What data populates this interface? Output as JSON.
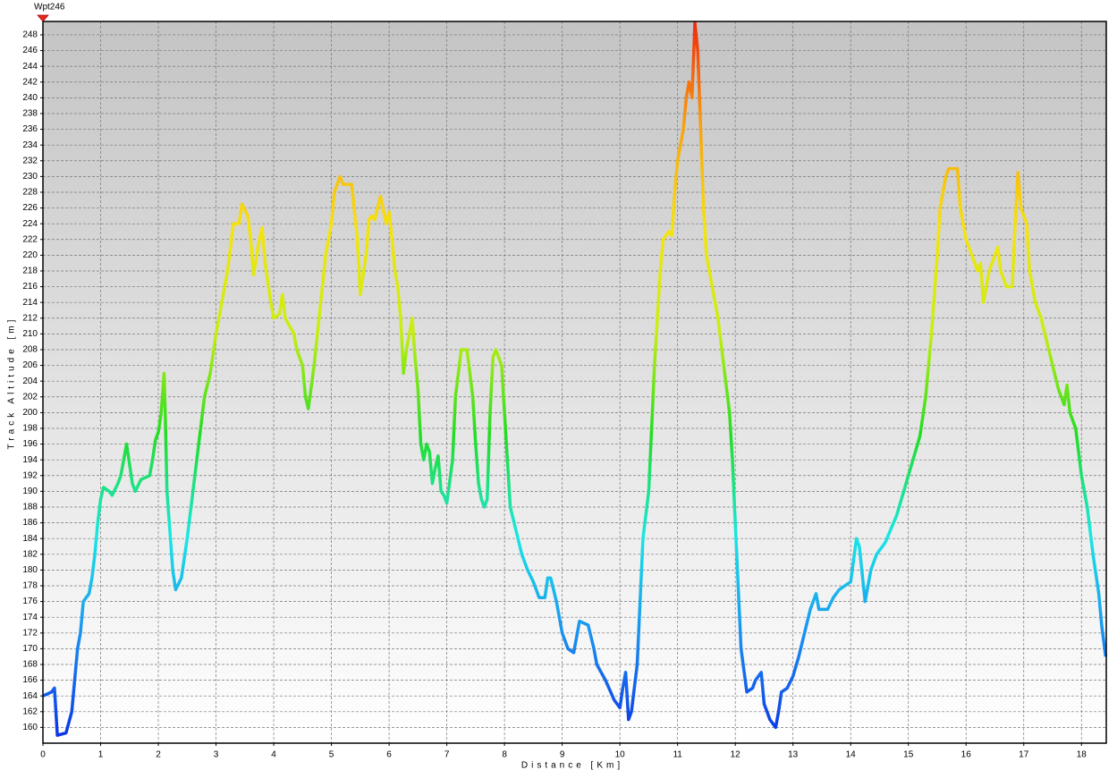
{
  "chart_data": {
    "type": "line",
    "xlabel": "Distance [Km]",
    "ylabel": "Track Altitude [m]",
    "annotations": [
      {
        "text": "Wpt246",
        "x": 0
      }
    ],
    "grid": true,
    "colorscale": [
      "#0a2ee6",
      "#1a8cf0",
      "#19e6e6",
      "#22dd22",
      "#c8ee10",
      "#f5e30e",
      "#f8a012",
      "#f02a0a"
    ],
    "xlim": [
      0,
      18.43
    ],
    "ylim": [
      158,
      249.7
    ],
    "xticks": [
      0,
      1,
      2,
      3,
      4,
      5,
      6,
      7,
      8,
      9,
      10,
      11,
      12,
      13,
      14,
      15,
      16,
      17,
      18
    ],
    "yticks": [
      160,
      162,
      164,
      166,
      168,
      170,
      172,
      174,
      176,
      178,
      180,
      182,
      184,
      186,
      188,
      190,
      192,
      194,
      196,
      198,
      200,
      202,
      204,
      206,
      208,
      210,
      212,
      214,
      216,
      218,
      220,
      222,
      224,
      226,
      228,
      230,
      232,
      234,
      236,
      238,
      240,
      242,
      244,
      246,
      248
    ],
    "x": [
      0,
      0.15,
      0.2,
      0.25,
      0.4,
      0.5,
      0.55,
      0.6,
      0.65,
      0.7,
      0.8,
      0.85,
      0.9,
      0.95,
      1.0,
      1.05,
      1.15,
      1.2,
      1.3,
      1.35,
      1.4,
      1.45,
      1.55,
      1.6,
      1.7,
      1.85,
      1.9,
      1.95,
      2.0,
      2.05,
      2.1,
      2.12,
      2.15,
      2.25,
      2.3,
      2.4,
      2.5,
      2.6,
      2.7,
      2.8,
      2.9,
      3.0,
      3.1,
      3.2,
      3.25,
      3.3,
      3.4,
      3.45,
      3.55,
      3.6,
      3.65,
      3.75,
      3.8,
      3.85,
      3.95,
      4.0,
      4.1,
      4.15,
      4.2,
      4.35,
      4.4,
      4.5,
      4.55,
      4.6,
      4.7,
      4.8,
      4.9,
      5.0,
      5.05,
      5.15,
      5.2,
      5.35,
      5.45,
      5.5,
      5.6,
      5.65,
      5.7,
      5.75,
      5.85,
      5.95,
      6.0,
      6.05,
      6.1,
      6.15,
      6.2,
      6.25,
      6.3,
      6.35,
      6.4,
      6.45,
      6.5,
      6.55,
      6.6,
      6.65,
      6.7,
      6.75,
      6.8,
      6.85,
      6.9,
      6.95,
      7.0,
      7.1,
      7.15,
      7.25,
      7.35,
      7.45,
      7.5,
      7.55,
      7.6,
      7.65,
      7.7,
      7.75,
      7.8,
      7.85,
      7.95,
      8.0,
      8.05,
      8.1,
      8.2,
      8.3,
      8.4,
      8.5,
      8.6,
      8.7,
      8.75,
      8.8,
      8.9,
      9.0,
      9.1,
      9.2,
      9.3,
      9.45,
      9.55,
      9.6,
      9.75,
      9.9,
      10.0,
      10.05,
      10.1,
      10.15,
      10.2,
      10.3,
      10.35,
      10.4,
      10.5,
      10.55,
      10.6,
      10.65,
      10.7,
      10.75,
      10.85,
      10.9,
      10.95,
      11.0,
      11.1,
      11.15,
      11.2,
      11.25,
      11.3,
      11.35,
      11.4,
      11.45,
      11.5,
      11.6,
      11.7,
      11.8,
      11.9,
      11.95,
      12.0,
      12.05,
      12.1,
      12.2,
      12.3,
      12.35,
      12.45,
      12.5,
      12.6,
      12.7,
      12.75,
      12.8,
      12.9,
      13.0,
      13.1,
      13.2,
      13.3,
      13.4,
      13.45,
      13.6,
      13.7,
      13.8,
      13.9,
      14.0,
      14.1,
      14.15,
      14.25,
      14.35,
      14.45,
      14.6,
      14.8,
      15.0,
      15.2,
      15.3,
      15.4,
      15.5,
      15.55,
      15.65,
      15.7,
      15.85,
      15.9,
      16.0,
      16.1,
      16.2,
      16.25,
      16.3,
      16.4,
      16.5,
      16.55,
      16.6,
      16.7,
      16.8,
      16.85,
      16.9,
      16.95,
      17.05,
      17.1,
      17.2,
      17.3,
      17.4,
      17.5,
      17.6,
      17.7,
      17.75,
      17.8,
      17.9,
      18.0,
      18.1,
      18.2,
      18.3,
      18.35,
      18.42
    ],
    "values": [
      164,
      164.5,
      165,
      159,
      159.3,
      162,
      166,
      170,
      172,
      176,
      177,
      179,
      182,
      186,
      189,
      190.5,
      190,
      189.5,
      191,
      192,
      194,
      196,
      191,
      190,
      191.5,
      192,
      194,
      196.5,
      197.5,
      200,
      205,
      200,
      190,
      180,
      177.5,
      179,
      184,
      190,
      196,
      202,
      205,
      210,
      214,
      218,
      221,
      224,
      224,
      226.5,
      225,
      222,
      217.5,
      222,
      223.5,
      219,
      214,
      212,
      212.5,
      215,
      212,
      210,
      208,
      206,
      202,
      200.5,
      206,
      213,
      220,
      224,
      228,
      230,
      229,
      229,
      222,
      215,
      220,
      224.5,
      225,
      224.5,
      227.5,
      224,
      225.5,
      222,
      218,
      216,
      212,
      205,
      208,
      210,
      212,
      207,
      203,
      196,
      194,
      196,
      195,
      191,
      193,
      194.5,
      190,
      189.5,
      188.5,
      194,
      202,
      208,
      208,
      202,
      196,
      191,
      189,
      188,
      189,
      200,
      207,
      208,
      206,
      200,
      194,
      188,
      185,
      182,
      180,
      178.5,
      176.5,
      176.5,
      179,
      179,
      176,
      172,
      170,
      169.5,
      173.5,
      173,
      170,
      168,
      166,
      163.5,
      162.5,
      165,
      167,
      161,
      162,
      168,
      176,
      184,
      190,
      198,
      206,
      212,
      218,
      222,
      223,
      222.5,
      228,
      232,
      236,
      240,
      242,
      240,
      249.5,
      246,
      236,
      226,
      220,
      216,
      212,
      206,
      200,
      194,
      186,
      178,
      170,
      164.5,
      165,
      166,
      167,
      163,
      161,
      160,
      162,
      164.5,
      165,
      166.5,
      169,
      172,
      175,
      177,
      175,
      175,
      176.5,
      177.5,
      178,
      178.5,
      184,
      183,
      176,
      180,
      182,
      183.5,
      187,
      192,
      197,
      202,
      210,
      220,
      226,
      230,
      231,
      231,
      226,
      222,
      220,
      218,
      219,
      214,
      218,
      220,
      221,
      218,
      216,
      216,
      224,
      230.5,
      226,
      224,
      218,
      214,
      212,
      209,
      206,
      203,
      201,
      203.5,
      200,
      198,
      192,
      188,
      182,
      177,
      173,
      169
    ]
  }
}
